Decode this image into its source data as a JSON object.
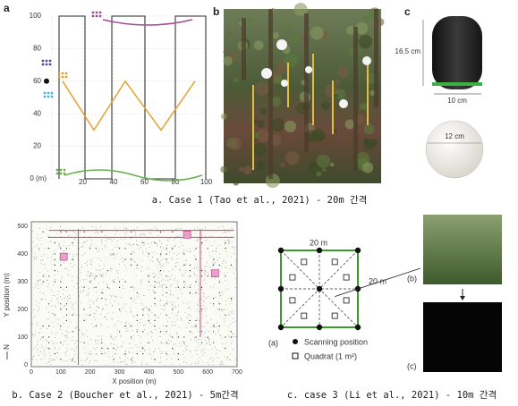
{
  "panel_a": {
    "label": "a",
    "yticks": [
      "0 (m)",
      "20",
      "40",
      "60",
      "80",
      "100"
    ],
    "xticks": [
      "20",
      "40",
      "60",
      "80",
      "100"
    ]
  },
  "panel_b": {
    "label": "b"
  },
  "panel_c": {
    "label": "c",
    "height": "16.5 cm",
    "width": "10 cm",
    "diameter": "12 cm"
  },
  "caption_1": "a. Case 1 (Tao et al., 2021) - 20m 간격",
  "map": {
    "y_label": "Y position (m)",
    "x_label": "X position (m)",
    "north": "N",
    "yticks": [
      0,
      100,
      200,
      300,
      400,
      500
    ],
    "xticks": [
      0,
      100,
      200,
      300,
      400,
      500,
      600,
      700
    ]
  },
  "caption_2": "b. Case 2 (Boucher et al., 2021) - 5m간격",
  "diagram": {
    "top_label": "20 m",
    "side_label": "20 m",
    "panel_a": "(a)",
    "legend_scan": "Scanning position",
    "legend_quadrat": "Quadrat (1 m²)",
    "panel_b": "(b)",
    "panel_c": "(c)"
  },
  "caption_3": "c. case 3 (Li et al., 2021) - 10m 간격"
}
